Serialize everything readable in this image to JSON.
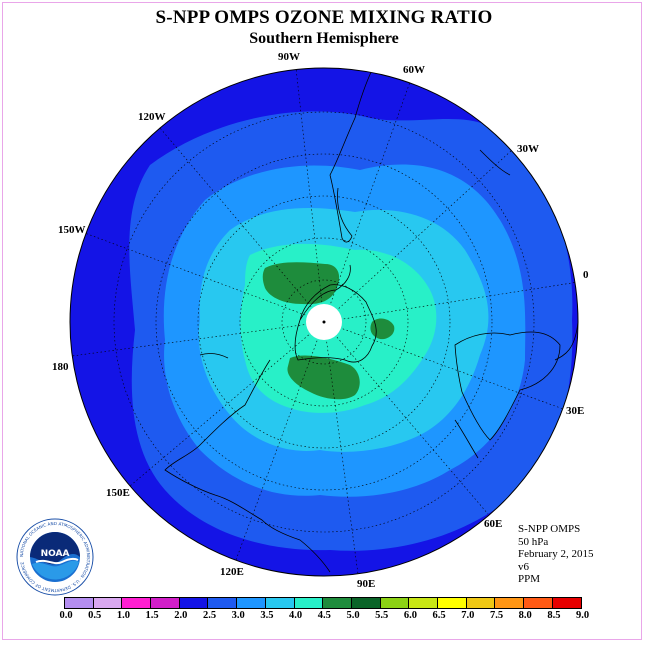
{
  "title": "S-NPP OMPS OZONE MIXING RATIO",
  "subtitle": "Southern Hemisphere",
  "info": {
    "instrument": "S-NPP OMPS",
    "level": "50 hPa",
    "date": "February 2, 2015",
    "version": "v6",
    "units": "PPM"
  },
  "longitude_labels": [
    "90W",
    "60W",
    "30W",
    "0",
    "30E",
    "60E",
    "90E",
    "120E",
    "150E",
    "180",
    "150W",
    "120W"
  ],
  "colorbar": {
    "ticks": [
      "0.0",
      "0.5",
      "1.0",
      "1.5",
      "2.0",
      "2.5",
      "3.0",
      "3.5",
      "4.0",
      "4.5",
      "5.0",
      "5.5",
      "6.0",
      "6.5",
      "7.0",
      "7.5",
      "8.0",
      "8.5",
      "9.0"
    ],
    "colors": [
      "#b48ef0",
      "#d9a8f0",
      "#ff1ed2",
      "#d21ec8",
      "#1414e6",
      "#1e5af0",
      "#1e96ff",
      "#28c8f0",
      "#28f0c8",
      "#1e8c3c",
      "#0a6428",
      "#8cd214",
      "#c8e614",
      "#ffff00",
      "#f0c814",
      "#ff9614",
      "#ff5a14",
      "#e60000",
      "#8c5a3c"
    ]
  },
  "logo_text": "NOAA",
  "logo_ring_text": "NATIONAL OCEANIC AND ATMOSPHERIC ADMINISTRATION · U.S. DEPARTMENT OF COMMERCE"
}
